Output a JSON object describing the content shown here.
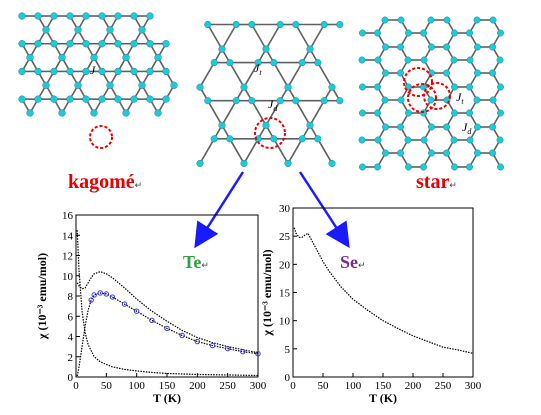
{
  "lattices": {
    "kagome_label": "kagomé",
    "star_label": "star",
    "kagome_J": "J",
    "middle_Jt": "J",
    "middle_Jt_sub": "t",
    "middle_Jd": "J",
    "middle_Jd_sub": "d",
    "star_Jt": "J",
    "star_Jt_sub": "t",
    "star_Jd": "J",
    "star_Jd_sub": "d",
    "mark": "↵"
  },
  "colors": {
    "node": "#20c8d8",
    "bond": "#606060",
    "highlight": "#e60000",
    "arrow": "#1a1aff"
  },
  "chart_data": [
    {
      "type": "line",
      "compound_label": "Te",
      "xlabel": "T (K)",
      "ylabel": "χ (10⁻³ emu/mol)",
      "xlim": [
        0,
        300
      ],
      "ylim": [
        0,
        16
      ],
      "xticks": [
        0,
        50,
        100,
        150,
        200,
        250,
        300
      ],
      "yticks": [
        0,
        2,
        4,
        6,
        8,
        10,
        12,
        14,
        16
      ],
      "series": [
        {
          "x": [
            2,
            5,
            10,
            15,
            20,
            25,
            30,
            40,
            50,
            60,
            80,
            100,
            125,
            150,
            175,
            200,
            225,
            250,
            275,
            300
          ],
          "y": [
            9.3,
            9.0,
            8.7,
            8.8,
            9.3,
            9.8,
            10.2,
            10.4,
            10.2,
            9.8,
            8.8,
            7.7,
            6.5,
            5.5,
            4.6,
            3.9,
            3.4,
            3.0,
            2.7,
            2.4
          ]
        },
        {
          "x": [
            2,
            5,
            10,
            15,
            20,
            25,
            30,
            40,
            50,
            60,
            80,
            100,
            125,
            150,
            175,
            200,
            225,
            250,
            275,
            300
          ],
          "y": [
            0.1,
            1.0,
            3.0,
            5.0,
            6.6,
            7.6,
            8.1,
            8.3,
            8.2,
            7.9,
            7.2,
            6.5,
            5.6,
            4.8,
            4.1,
            3.5,
            3.1,
            2.8,
            2.5,
            2.3
          ]
        },
        {
          "x": [
            2,
            5,
            10,
            15,
            20,
            30,
            40,
            60,
            80,
            100,
            125,
            150,
            200,
            250,
            300
          ],
          "y": [
            14.5,
            10.5,
            6.5,
            4.4,
            3.2,
            2.0,
            1.5,
            1.0,
            0.75,
            0.6,
            0.45,
            0.35,
            0.25,
            0.2,
            0.15
          ]
        }
      ]
    },
    {
      "type": "line",
      "compound_label": "Se",
      "xlabel": "T (K)",
      "ylabel": "χ (10⁻³ emu/mol)",
      "xlim": [
        0,
        300
      ],
      "ylim": [
        0,
        30
      ],
      "xticks": [
        0,
        50,
        100,
        150,
        200,
        250,
        300
      ],
      "yticks": [
        0,
        5,
        10,
        15,
        20,
        25,
        30
      ],
      "series": [
        {
          "x": [
            2,
            5,
            10,
            15,
            20,
            25,
            30,
            40,
            50,
            60,
            80,
            100,
            125,
            150,
            175,
            200,
            225,
            250,
            275,
            300
          ],
          "y": [
            26.5,
            25.5,
            24.8,
            24.8,
            25.2,
            25.5,
            24.5,
            22.5,
            20.5,
            18.8,
            16.0,
            13.8,
            11.8,
            10.0,
            8.6,
            7.3,
            6.3,
            5.3,
            4.8,
            4.2
          ]
        }
      ]
    }
  ]
}
